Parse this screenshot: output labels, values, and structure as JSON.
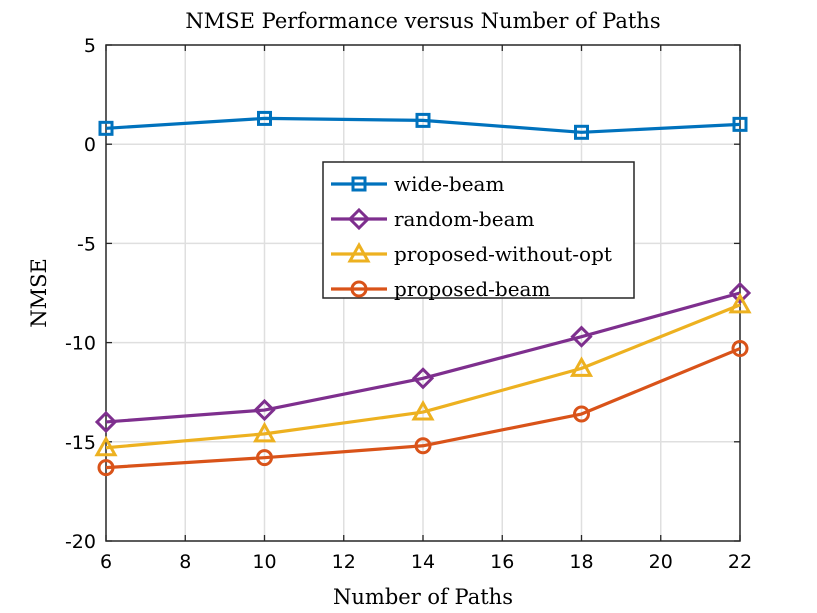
{
  "chart_data": {
    "type": "line",
    "title": "NMSE Performance versus Number of Paths",
    "xlabel": "Number of Paths",
    "ylabel": "NMSE",
    "xlim": [
      6,
      22
    ],
    "ylim": [
      -20,
      5
    ],
    "xticks": [
      6,
      8,
      10,
      12,
      14,
      16,
      18,
      20,
      22
    ],
    "yticks": [
      5,
      0,
      -5,
      -10,
      -15,
      -20
    ],
    "grid": true,
    "legend_position": "center",
    "x": [
      6,
      10,
      14,
      18,
      22
    ],
    "series": [
      {
        "name": "wide-beam",
        "color": "#0072BD",
        "marker": "square",
        "values": [
          0.8,
          1.3,
          1.2,
          0.6,
          1.0
        ]
      },
      {
        "name": "random-beam",
        "color": "#7E2F8E",
        "marker": "diamond",
        "values": [
          -14.0,
          -13.4,
          -11.8,
          -9.7,
          -7.5
        ]
      },
      {
        "name": "proposed-without-opt",
        "color": "#EDB120",
        "marker": "triangle",
        "values": [
          -15.3,
          -14.6,
          -13.5,
          -11.3,
          -8.1
        ]
      },
      {
        "name": "proposed-beam",
        "color": "#D95319",
        "marker": "circle",
        "values": [
          -16.3,
          -15.8,
          -15.2,
          -13.6,
          -10.3
        ]
      }
    ]
  }
}
